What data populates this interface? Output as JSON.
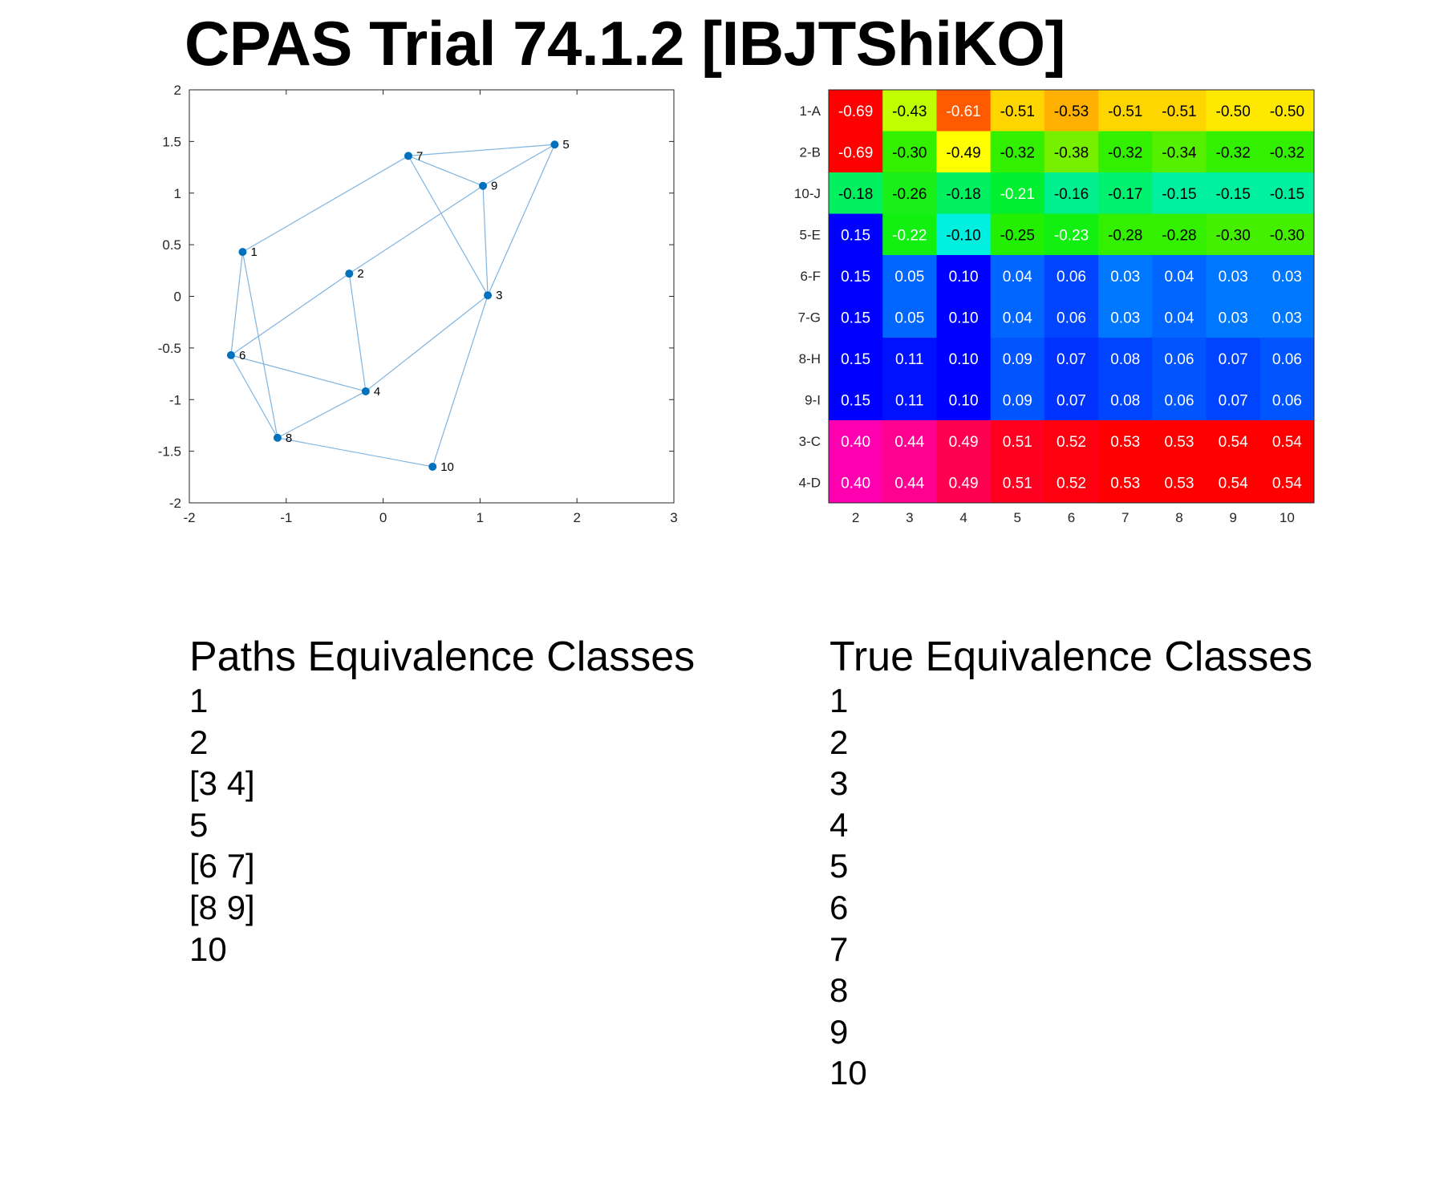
{
  "title": "CPAS Trial 74.1.2 [IBJTShiKO]",
  "colors": {
    "node": "#0072BD",
    "edge": "#7FB4E0",
    "axis": "#262626"
  },
  "chart_data": [
    {
      "type": "scatter",
      "title": "",
      "xlabel": "",
      "ylabel": "",
      "xlim": [
        -2,
        3
      ],
      "ylim": [
        -2,
        2
      ],
      "xticks": [
        "-2",
        "-1",
        "0",
        "1",
        "2",
        "3"
      ],
      "yticks": [
        "2",
        "1.5",
        "1",
        "0.5",
        "0",
        "-0.5",
        "-1",
        "-1.5",
        "-2"
      ],
      "grid": false,
      "nodes": [
        {
          "id": "1",
          "x": -1.45,
          "y": 0.43
        },
        {
          "id": "2",
          "x": -0.35,
          "y": 0.22
        },
        {
          "id": "3",
          "x": 1.08,
          "y": 0.01
        },
        {
          "id": "4",
          "x": -0.18,
          "y": -0.92
        },
        {
          "id": "5",
          "x": 1.77,
          "y": 1.47
        },
        {
          "id": "6",
          "x": -1.57,
          "y": -0.57
        },
        {
          "id": "7",
          "x": 0.26,
          "y": 1.36
        },
        {
          "id": "8",
          "x": -1.09,
          "y": -1.37
        },
        {
          "id": "9",
          "x": 1.03,
          "y": 1.07
        },
        {
          "id": "10",
          "x": 0.51,
          "y": -1.65
        }
      ],
      "edges": [
        [
          "1",
          "7"
        ],
        [
          "1",
          "6"
        ],
        [
          "1",
          "8"
        ],
        [
          "7",
          "5"
        ],
        [
          "7",
          "9"
        ],
        [
          "7",
          "3"
        ],
        [
          "9",
          "5"
        ],
        [
          "9",
          "3"
        ],
        [
          "9",
          "2"
        ],
        [
          "5",
          "3"
        ],
        [
          "2",
          "6"
        ],
        [
          "2",
          "4"
        ],
        [
          "3",
          "4"
        ],
        [
          "3",
          "10"
        ],
        [
          "6",
          "4"
        ],
        [
          "6",
          "8"
        ],
        [
          "4",
          "8"
        ],
        [
          "8",
          "10"
        ]
      ]
    },
    {
      "type": "heatmap",
      "title": "",
      "rows": [
        "1-A",
        "2-B",
        "10-J",
        "5-E",
        "6-F",
        "7-G",
        "8-H",
        "9-I",
        "3-C",
        "4-D"
      ],
      "columns": [
        "2",
        "3",
        "4",
        "5",
        "6",
        "7",
        "8",
        "9",
        "10"
      ],
      "values": [
        [
          -0.69,
          -0.43,
          -0.61,
          -0.51,
          -0.53,
          -0.51,
          -0.51,
          -0.5,
          -0.5
        ],
        [
          -0.69,
          -0.3,
          -0.49,
          -0.32,
          -0.38,
          -0.32,
          -0.34,
          -0.32,
          -0.32
        ],
        [
          -0.18,
          -0.26,
          -0.18,
          -0.21,
          -0.16,
          -0.17,
          -0.15,
          -0.15,
          -0.15
        ],
        [
          0.15,
          -0.22,
          -0.1,
          -0.25,
          -0.23,
          -0.28,
          -0.28,
          -0.3,
          -0.3
        ],
        [
          0.15,
          0.05,
          0.1,
          0.04,
          0.06,
          0.03,
          0.04,
          0.03,
          0.03
        ],
        [
          0.15,
          0.05,
          0.1,
          0.04,
          0.06,
          0.03,
          0.04,
          0.03,
          0.03
        ],
        [
          0.15,
          0.11,
          0.1,
          0.09,
          0.07,
          0.08,
          0.06,
          0.07,
          0.06
        ],
        [
          0.15,
          0.11,
          0.1,
          0.09,
          0.07,
          0.08,
          0.06,
          0.07,
          0.06
        ],
        [
          0.4,
          0.44,
          0.49,
          0.51,
          0.52,
          0.53,
          0.53,
          0.54,
          0.54
        ],
        [
          0.4,
          0.44,
          0.49,
          0.51,
          0.52,
          0.53,
          0.53,
          0.54,
          0.54
        ]
      ],
      "cell_colors": [
        [
          "#FF0000",
          "#BFFF00",
          "#FF5A00",
          "#FFD500",
          "#FFB000",
          "#FFD500",
          "#FFD500",
          "#FFE800",
          "#FFE800"
        ],
        [
          "#FF0000",
          "#33F000",
          "#FFFF00",
          "#33F000",
          "#77F000",
          "#33F000",
          "#55F000",
          "#33F000",
          "#33F000"
        ],
        [
          "#00F060",
          "#19F019",
          "#00F060",
          "#00F030",
          "#00F090",
          "#00F070",
          "#00F0A0",
          "#00F0A0",
          "#00F0A0"
        ],
        [
          "#0000FF",
          "#11F011",
          "#00F0E0",
          "#22F000",
          "#11F011",
          "#33F000",
          "#33F000",
          "#44F000",
          "#44F000"
        ],
        [
          "#0000FF",
          "#0066FF",
          "#0000FF",
          "#0066FF",
          "#0044FF",
          "#0077FF",
          "#0066FF",
          "#0077FF",
          "#0077FF"
        ],
        [
          "#0000FF",
          "#0066FF",
          "#0000FF",
          "#0066FF",
          "#0044FF",
          "#0077FF",
          "#0066FF",
          "#0077FF",
          "#0077FF"
        ],
        [
          "#0000FF",
          "#0011FF",
          "#0000FF",
          "#0055FF",
          "#0033FF",
          "#0044FF",
          "#0055FF",
          "#0044FF",
          "#0055FF"
        ],
        [
          "#0000FF",
          "#0011FF",
          "#0000FF",
          "#0055FF",
          "#0033FF",
          "#0044FF",
          "#0055FF",
          "#0044FF",
          "#0055FF"
        ],
        [
          "#FF00B0",
          "#FF0090",
          "#FF0050",
          "#FF0020",
          "#FF0010",
          "#FF0000",
          "#FF0000",
          "#FF0000",
          "#FF0000"
        ],
        [
          "#FF00B0",
          "#FF0090",
          "#FF0050",
          "#FF0020",
          "#FF0010",
          "#FF0000",
          "#FF0000",
          "#FF0000",
          "#FF0000"
        ]
      ],
      "text_color_dark": "#000000",
      "text_color_light": "#FFFFFF"
    }
  ],
  "paths_classes": {
    "title": "Paths Equivalence Classes",
    "items": [
      "1",
      "2",
      "[3 4]",
      "5",
      "[6 7]",
      "[8 9]",
      "10"
    ]
  },
  "true_classes": {
    "title": "True Equivalence Classes",
    "items": [
      "1",
      "2",
      "3",
      "4",
      "5",
      "6",
      "7",
      "8",
      "9",
      "10"
    ]
  }
}
